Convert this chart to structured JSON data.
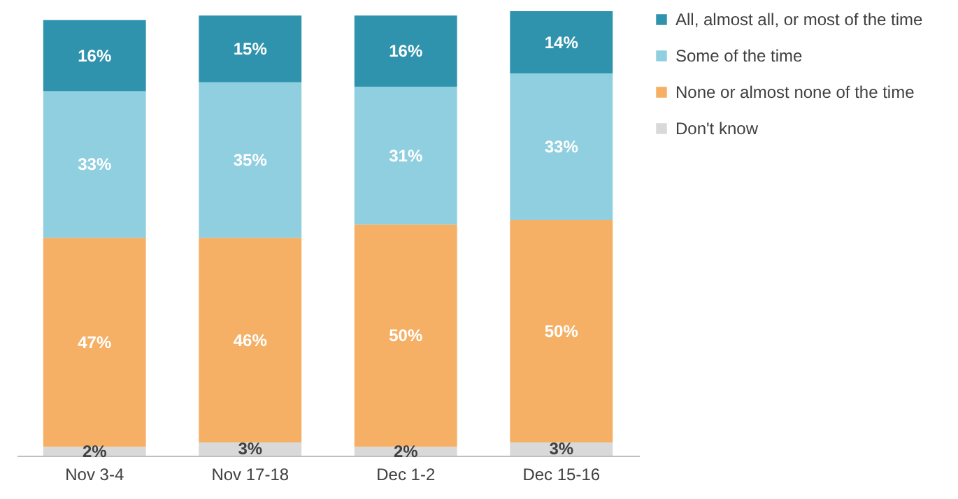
{
  "chart_data": {
    "type": "bar",
    "stacked": true,
    "categories": [
      "Nov 3-4",
      "Nov 17-18",
      "Dec 1-2",
      "Dec 15-16"
    ],
    "series": [
      {
        "name": "Don't know",
        "color": "#d9d9d9",
        "values": [
          2,
          3,
          2,
          3
        ],
        "value_labels": [
          "2%",
          "3%",
          "2%",
          "3%"
        ]
      },
      {
        "name": "None or almost none of the time",
        "color": "#f5b066",
        "values": [
          47,
          46,
          50,
          50
        ],
        "value_labels": [
          "47%",
          "46%",
          "50%",
          "50%"
        ]
      },
      {
        "name": "Some of the time",
        "color": "#90cfe0",
        "values": [
          33,
          35,
          31,
          33
        ],
        "value_labels": [
          "33%",
          "35%",
          "31%",
          "33%"
        ]
      },
      {
        "name": "All, almost all, or most of the time",
        "color": "#2f93ad",
        "values": [
          16,
          15,
          16,
          14
        ],
        "value_labels": [
          "16%",
          "15%",
          "16%",
          "14%"
        ]
      }
    ],
    "legend": "right"
  }
}
